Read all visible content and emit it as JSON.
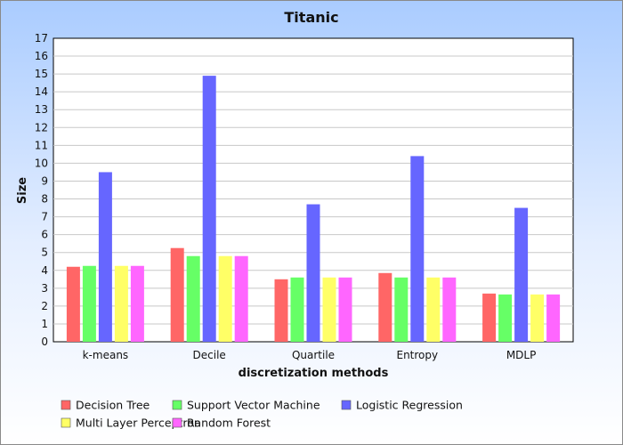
{
  "chart_data": {
    "type": "bar",
    "title": "Titanic",
    "xlabel": "discretization methods",
    "ylabel": "Size",
    "ylim": [
      0,
      17
    ],
    "yticks": [
      0,
      1,
      2,
      3,
      4,
      5,
      6,
      7,
      8,
      9,
      10,
      11,
      12,
      13,
      14,
      15,
      16,
      17
    ],
    "grid": true,
    "legend_position": "bottom",
    "categories": [
      "k-means",
      "Decile",
      "Quartile",
      "Entropy",
      "MDLP"
    ],
    "series": [
      {
        "name": "Decision Tree",
        "color": "#ff6666",
        "values": [
          4.2,
          5.25,
          3.5,
          3.85,
          2.7
        ]
      },
      {
        "name": "Support Vector Machine",
        "color": "#66ff66",
        "values": [
          4.25,
          4.8,
          3.6,
          3.6,
          2.65
        ]
      },
      {
        "name": "Logistic Regression",
        "color": "#6666ff",
        "values": [
          9.5,
          14.9,
          7.7,
          10.4,
          7.5
        ]
      },
      {
        "name": "Multi Layer Perceptron",
        "color": "#ffff66",
        "values": [
          4.25,
          4.8,
          3.6,
          3.6,
          2.65
        ]
      },
      {
        "name": "Random Forest",
        "color": "#ff66ff",
        "values": [
          4.25,
          4.8,
          3.6,
          3.6,
          2.65
        ]
      }
    ]
  }
}
